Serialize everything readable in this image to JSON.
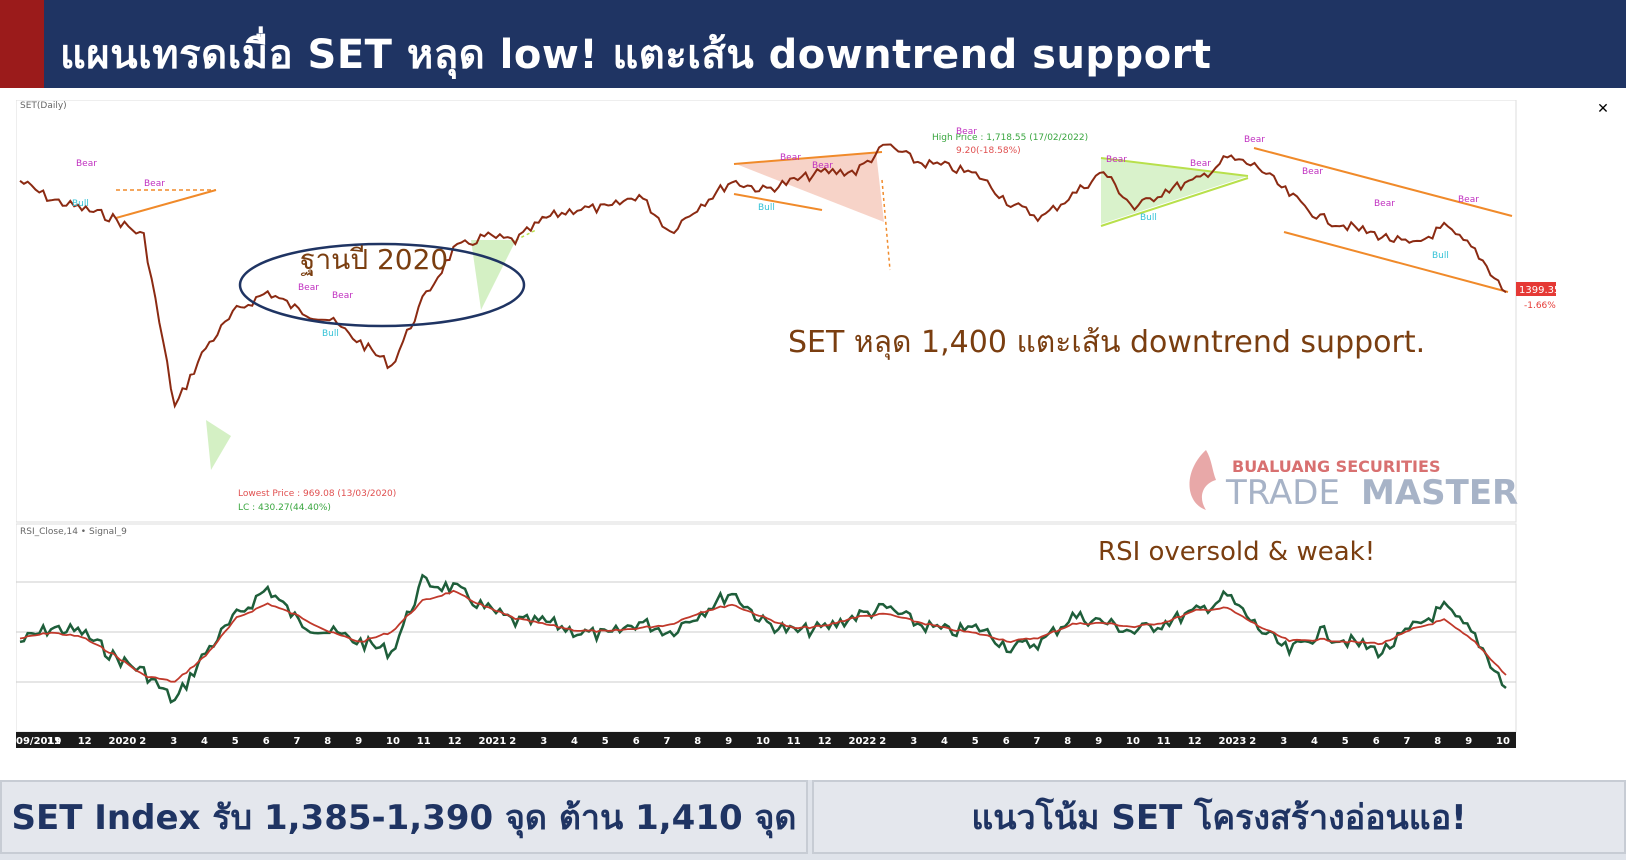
{
  "header": {
    "title": "แผนเทรดเมื่อ SET หลุด low! แตะเส้น downtrend support"
  },
  "price_panel": {
    "label": "SET(Daily)",
    "annotation_base": "ฐานปี 2020",
    "annotation_main": "SET หลุด 1,400 แตะเส้น downtrend support.",
    "lowest_price": "Lowest Price : 969.08 (13/03/2020)",
    "lc": "LC : 430.27(44.40%)",
    "high_price": "High Price : 1,718.55 (17/02/2022)",
    "high_change": "9.20(-18.58%)",
    "last_price": "1399.35",
    "last_change": "-1.66%",
    "watermark_line1": "BUALUANG SECURITIES",
    "watermark_line2a": "TRADE",
    "watermark_line2b": "MASTER"
  },
  "rsi_panel": {
    "label": "RSI_Close,14 • Signal_9",
    "annotation": "RSI oversold & weak!"
  },
  "pattern_labels": {
    "bear": "Bear",
    "bull": "Bull"
  },
  "x_axis": [
    "09/2019",
    "11",
    "12",
    "2020",
    "2",
    "3",
    "4",
    "5",
    "6",
    "7",
    "8",
    "9",
    "10",
    "11",
    "12",
    "2021",
    "2",
    "3",
    "4",
    "5",
    "6",
    "7",
    "8",
    "9",
    "10",
    "11",
    "12",
    "2022",
    "2",
    "3",
    "4",
    "5",
    "6",
    "7",
    "8",
    "9",
    "10",
    "11",
    "12",
    "2023",
    "2",
    "3",
    "4",
    "5",
    "6",
    "7",
    "8",
    "9",
    "10"
  ],
  "footer": {
    "left": "SET Index รับ 1,385-1,390 จุด ต้าน 1,410 จุด",
    "right": "แนวโน้ม SET โครงสร้างอ่อนแอ!"
  },
  "colors": {
    "title_bg": "#1f3463",
    "accent_red": "#9b1b1b",
    "annotation_brown": "#7a3e10",
    "rsi_line": "#1e5e3a",
    "signal_line": "#c0392b",
    "trendline": "#f08a2a"
  },
  "chart_data": {
    "type": "line",
    "title": "SET(Daily)",
    "x": [
      "2019-09",
      "2019-11",
      "2019-12",
      "2020-01",
      "2020-02",
      "2020-03",
      "2020-04",
      "2020-05",
      "2020-06",
      "2020-07",
      "2020-08",
      "2020-09",
      "2020-10",
      "2020-11",
      "2020-12",
      "2021-01",
      "2021-02",
      "2021-03",
      "2021-04",
      "2021-05",
      "2021-06",
      "2021-07",
      "2021-08",
      "2021-09",
      "2021-10",
      "2021-11",
      "2021-12",
      "2022-01",
      "2022-02",
      "2022-03",
      "2022-04",
      "2022-05",
      "2022-06",
      "2022-07",
      "2022-08",
      "2022-09",
      "2022-10",
      "2022-11",
      "2022-12",
      "2023-01",
      "2023-02",
      "2023-03",
      "2023-04",
      "2023-05",
      "2023-06",
      "2023-07",
      "2023-08",
      "2023-09",
      "2023-10"
    ],
    "series": [
      {
        "values": [
          1640,
          1600,
          1580,
          1560,
          1520,
          1150,
          1280,
          1360,
          1400,
          1360,
          1340,
          1290,
          1240,
          1380,
          1490,
          1520,
          1510,
          1560,
          1580,
          1580,
          1610,
          1530,
          1590,
          1640,
          1620,
          1640,
          1660,
          1660,
          1718,
          1680,
          1670,
          1650,
          1590,
          1560,
          1610,
          1660,
          1580,
          1620,
          1640,
          1690,
          1670,
          1610,
          1560,
          1540,
          1520,
          1500,
          1540,
          1490,
          1399
        ]
      },
      {
        "values": [
          45,
          52,
          50,
          38,
          30,
          15,
          40,
          58,
          72,
          55,
          50,
          45,
          40,
          75,
          72,
          62,
          55,
          55,
          50,
          48,
          55,
          50,
          60,
          70,
          55,
          50,
          52,
          58,
          62,
          54,
          50,
          52,
          42,
          45,
          58,
          55,
          50,
          55,
          60,
          68,
          52,
          40,
          50,
          45,
          40,
          52,
          62,
          48,
          22
        ]
      }
    ],
    "last_value": 1399.35,
    "lowest_value": 969.08,
    "highest_value": 1718.55
  }
}
